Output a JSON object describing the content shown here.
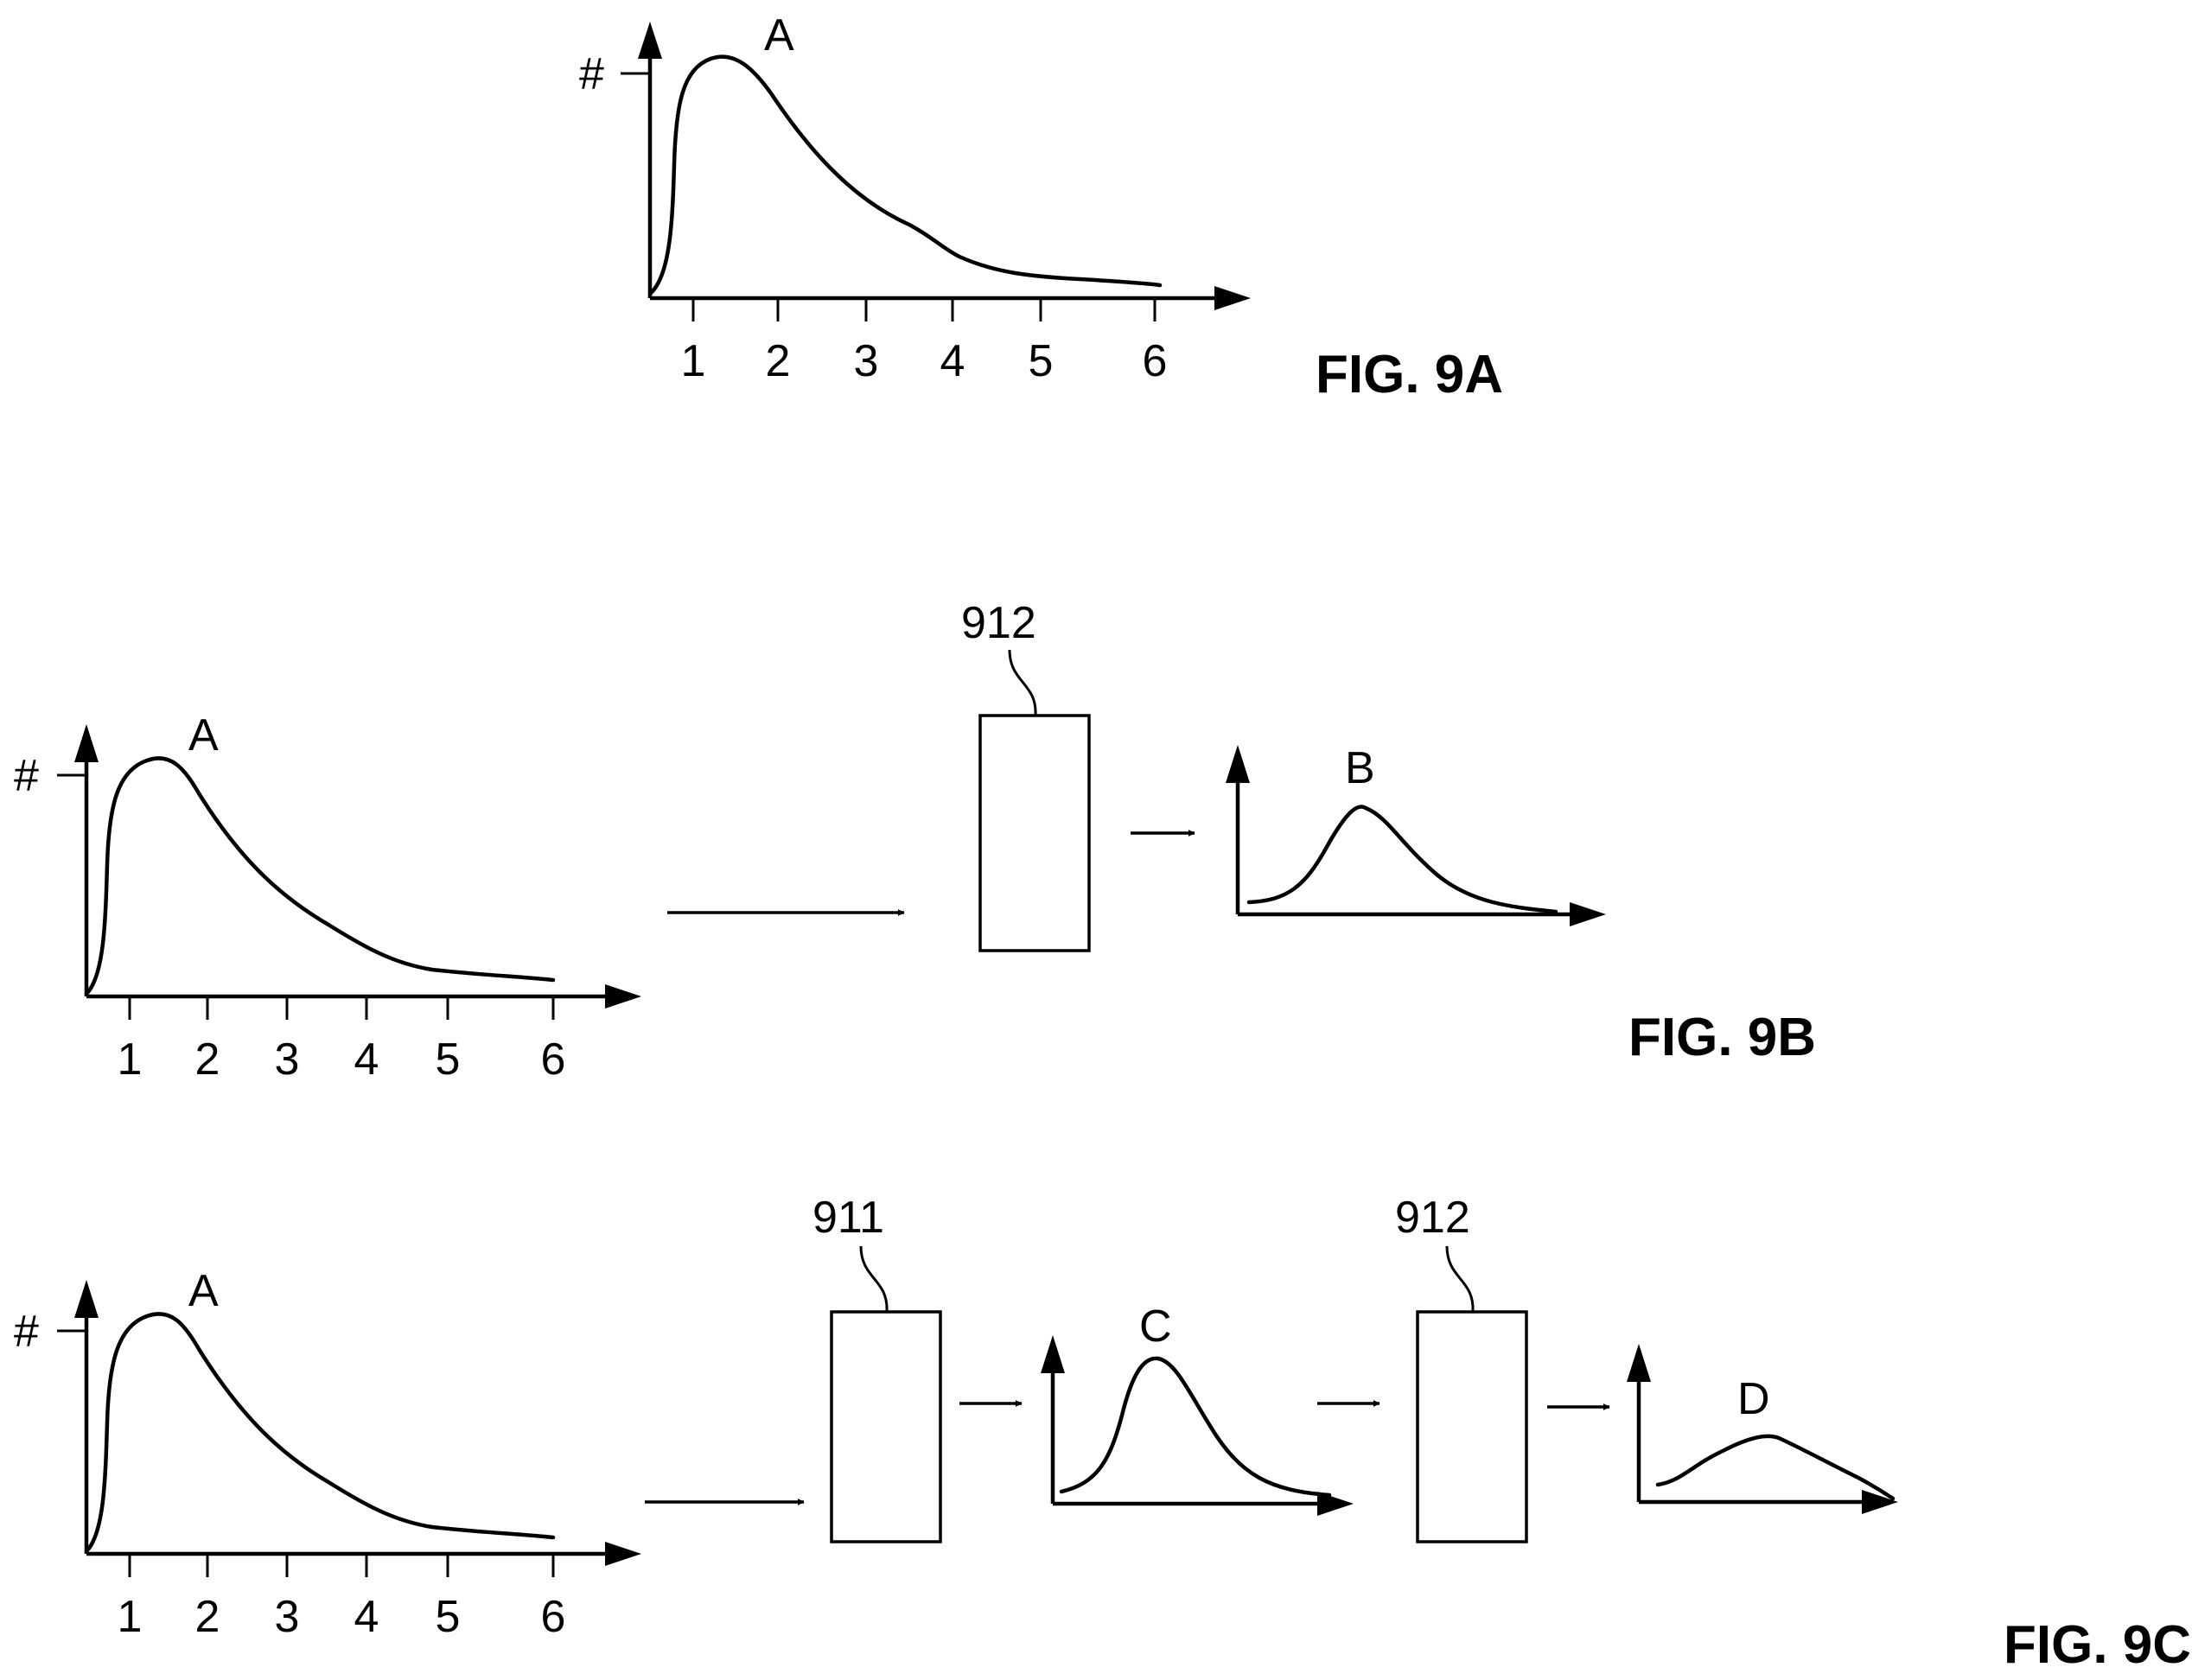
{
  "figures": [
    {
      "id": "9A",
      "caption": "FIG. 9A",
      "input_plot": {
        "curve_label": "A",
        "y_marker": "#",
        "x_ticks": [
          "1",
          "2",
          "3",
          "4",
          "5",
          "6"
        ]
      },
      "stages": []
    },
    {
      "id": "9B",
      "caption": "FIG. 9B",
      "input_plot": {
        "curve_label": "A",
        "y_marker": "#",
        "x_ticks": [
          "1",
          "2",
          "3",
          "4",
          "5",
          "6"
        ]
      },
      "stages": [
        {
          "block_label": "912",
          "output_label": "B"
        }
      ]
    },
    {
      "id": "9C",
      "caption": "FIG. 9C",
      "input_plot": {
        "curve_label": "A",
        "y_marker": "#",
        "x_ticks": [
          "1",
          "2",
          "3",
          "4",
          "5",
          "6"
        ]
      },
      "stages": [
        {
          "block_label": "911",
          "output_label": "C"
        },
        {
          "block_label": "912",
          "output_label": "D"
        }
      ]
    }
  ]
}
